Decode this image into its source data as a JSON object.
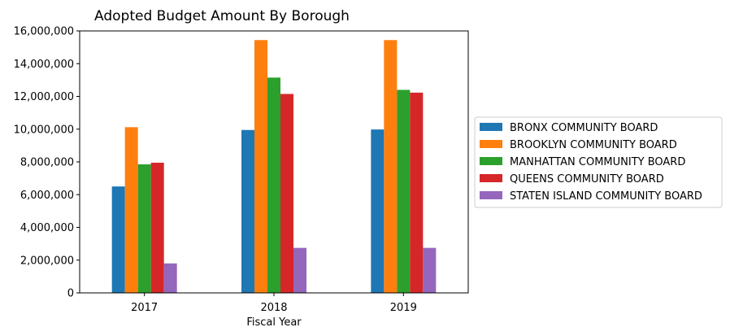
{
  "chart_data": {
    "type": "bar",
    "title": "Adopted Budget Amount By Borough",
    "xlabel": "Fiscal Year",
    "ylabel": "",
    "categories": [
      "2017",
      "2018",
      "2019"
    ],
    "ylim": [
      0,
      16000000
    ],
    "yticks": [
      0,
      2000000,
      4000000,
      6000000,
      8000000,
      10000000,
      12000000,
      14000000,
      16000000
    ],
    "ytick_labels": [
      "0",
      "2,000,000",
      "4,000,000",
      "6,000,000",
      "8,000,000",
      "10,000,000",
      "12,000,000",
      "14,000,000",
      "16,000,000"
    ],
    "grid": false,
    "legend_position": "right",
    "series": [
      {
        "name": "BRONX COMMUNITY BOARD",
        "color": "#1f77b4",
        "values": [
          6500000,
          9950000,
          9980000
        ]
      },
      {
        "name": "BROOKLYN COMMUNITY BOARD",
        "color": "#ff7f0e",
        "values": [
          10120000,
          15440000,
          15440000
        ]
      },
      {
        "name": "MANHATTAN COMMUNITY BOARD",
        "color": "#2ca02c",
        "values": [
          7850000,
          13150000,
          12400000
        ]
      },
      {
        "name": "QUEENS COMMUNITY BOARD",
        "color": "#d62728",
        "values": [
          7950000,
          12150000,
          12230000
        ]
      },
      {
        "name": "STATEN ISLAND COMMUNITY BOARD",
        "color": "#9467bd",
        "values": [
          1800000,
          2750000,
          2750000
        ]
      }
    ]
  }
}
